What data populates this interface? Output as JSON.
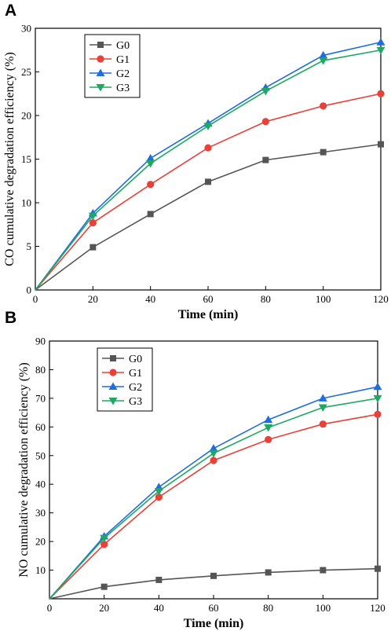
{
  "chart_data": [
    {
      "panel": "A",
      "type": "line",
      "xlabel": "Time (min)",
      "ylabel": "CO cumulative degradation efficiency (%)",
      "xlim": [
        0,
        120
      ],
      "ylim": [
        0,
        30
      ],
      "xticks": [
        "0",
        "20",
        "40",
        "60",
        "80",
        "100",
        "120"
      ],
      "yticks": [
        "0",
        "5",
        "10",
        "15",
        "20",
        "25",
        "30"
      ],
      "x": [
        0,
        20,
        40,
        60,
        80,
        100,
        120
      ],
      "legend_position": "top-left",
      "series": [
        {
          "name": "G0",
          "color": "#555555",
          "marker": "square",
          "values": [
            0,
            4.9,
            8.7,
            12.4,
            14.9,
            15.8,
            16.7
          ]
        },
        {
          "name": "G1",
          "color": "#e8413a",
          "marker": "circle",
          "values": [
            0,
            7.7,
            12.1,
            16.3,
            19.3,
            21.1,
            22.5
          ]
        },
        {
          "name": "G2",
          "color": "#1e6fd9",
          "marker": "triangle-up",
          "values": [
            0,
            8.8,
            15.1,
            19.1,
            23.2,
            26.9,
            28.4
          ]
        },
        {
          "name": "G3",
          "color": "#1fa862",
          "marker": "triangle-down",
          "values": [
            0,
            8.5,
            14.5,
            18.8,
            22.8,
            26.3,
            27.5
          ]
        }
      ]
    },
    {
      "panel": "B",
      "type": "line",
      "xlabel": "Time (min)",
      "ylabel": "NO cumulative degradation efficiency (%)",
      "xlim": [
        0,
        120
      ],
      "ylim": [
        0,
        90
      ],
      "xticks": [
        "0",
        "20",
        "40",
        "60",
        "80",
        "100",
        "120"
      ],
      "yticks": [
        "10",
        "20",
        "30",
        "40",
        "50",
        "60",
        "70",
        "80",
        "90"
      ],
      "x": [
        0,
        20,
        40,
        60,
        80,
        100,
        120
      ],
      "legend_position": "top-left",
      "series": [
        {
          "name": "G0",
          "color": "#555555",
          "marker": "square",
          "values": [
            0,
            4.2,
            6.6,
            8.0,
            9.2,
            10.0,
            10.5
          ]
        },
        {
          "name": "G1",
          "color": "#e8413a",
          "marker": "circle",
          "values": [
            0,
            19.0,
            35.5,
            48.3,
            55.6,
            61.0,
            64.4
          ]
        },
        {
          "name": "G2",
          "color": "#1e6fd9",
          "marker": "triangle-up",
          "values": [
            0,
            21.8,
            39.0,
            52.5,
            62.5,
            70.0,
            74.0
          ]
        },
        {
          "name": "G3",
          "color": "#1fa862",
          "marker": "triangle-down",
          "values": [
            0,
            21.2,
            37.6,
            50.8,
            59.8,
            66.8,
            70.0
          ]
        }
      ]
    }
  ]
}
